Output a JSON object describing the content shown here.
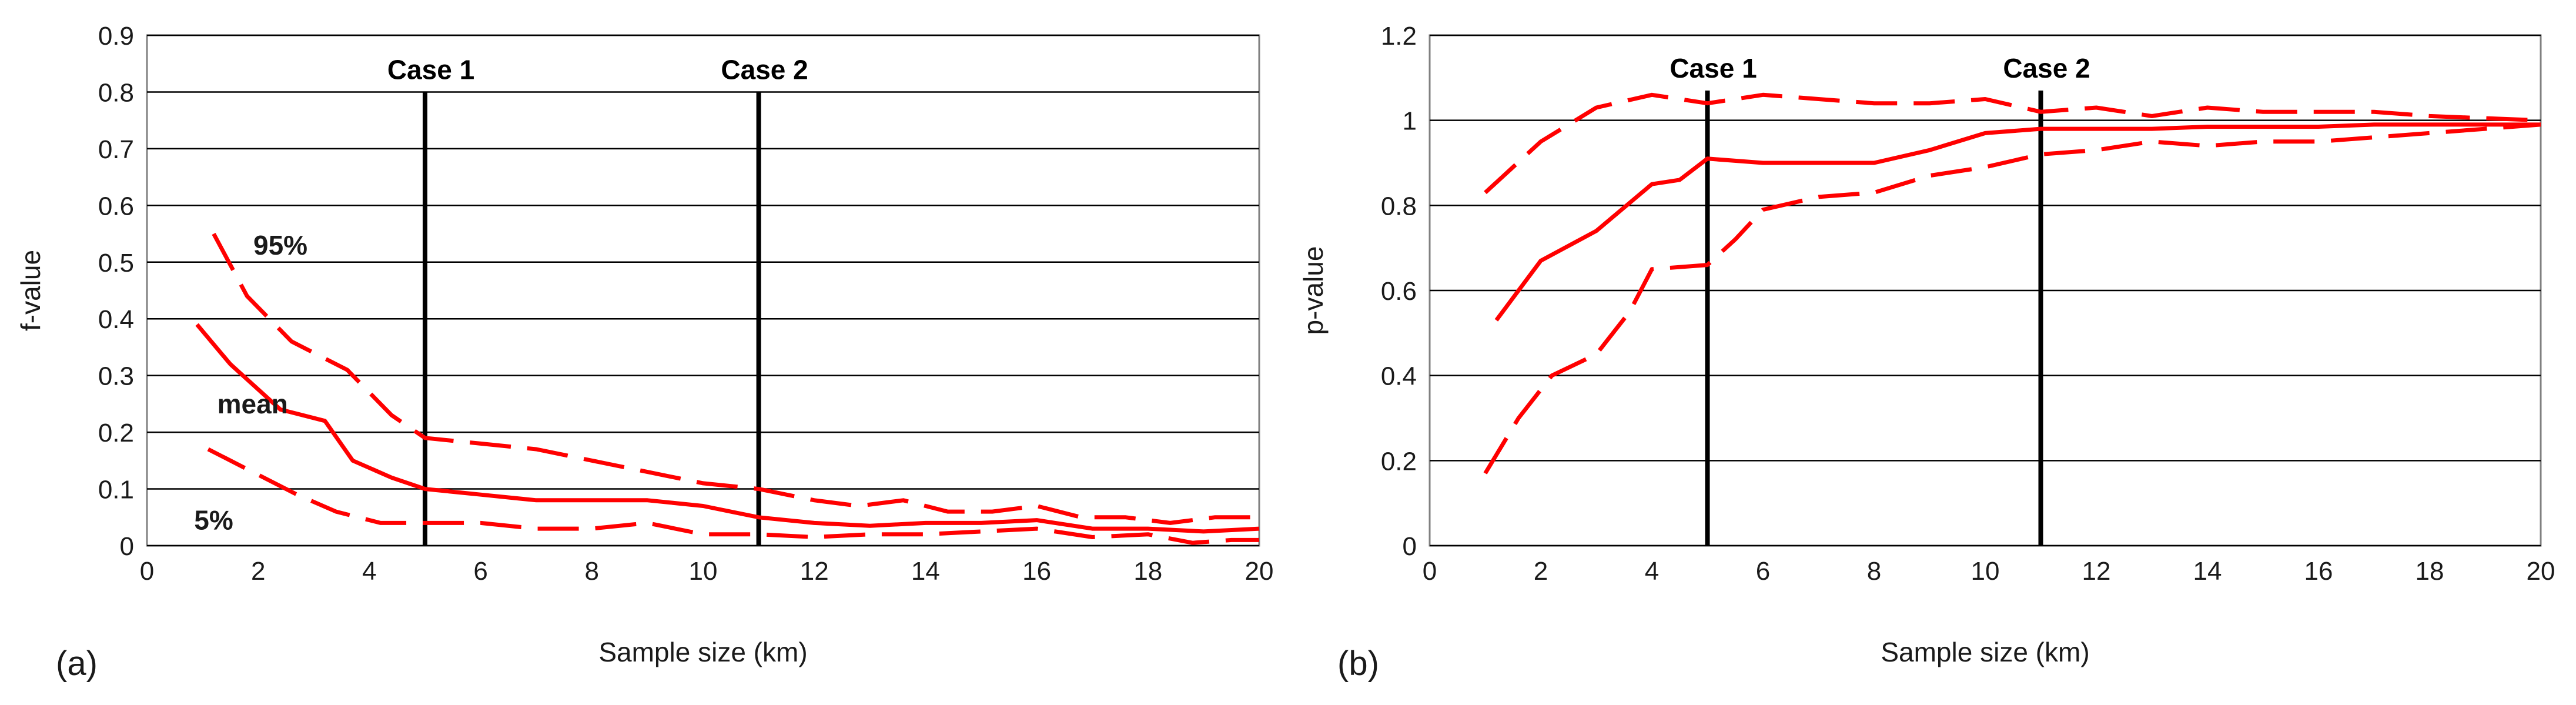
{
  "chart_data": [
    {
      "panel_label": "(a)",
      "type": "line",
      "xlabel": "Sample size (km)",
      "ylabel": "f-value",
      "xlim": [
        0,
        20
      ],
      "ylim": [
        0,
        0.9
      ],
      "xticks": [
        "0",
        "2",
        "4",
        "6",
        "8",
        "10",
        "12",
        "14",
        "16",
        "18",
        "20"
      ],
      "yticks": [
        "0",
        "0.1",
        "0.2",
        "0.3",
        "0.4",
        "0.5",
        "0.6",
        "0.7",
        "0.8",
        "0.9"
      ],
      "grid": "horizontal",
      "series": [
        {
          "name": "95%",
          "style": "dashed",
          "x": [
            1.2,
            1.8,
            2.6,
            3.6,
            4.4,
            5,
            6,
            7,
            8,
            9,
            10,
            11,
            12,
            12.8,
            13.6,
            14.4,
            15.2,
            16,
            16.8,
            17.6,
            18.4,
            19.2,
            20
          ],
          "y": [
            0.55,
            0.44,
            0.36,
            0.31,
            0.23,
            0.19,
            0.18,
            0.17,
            0.15,
            0.13,
            0.11,
            0.1,
            0.08,
            0.07,
            0.08,
            0.06,
            0.06,
            0.07,
            0.05,
            0.05,
            0.04,
            0.05,
            0.05
          ]
        },
        {
          "name": "mean",
          "style": "solid",
          "x": [
            0.9,
            1.5,
            2.4,
            3.2,
            3.7,
            4.4,
            5,
            6,
            7,
            8,
            9,
            10,
            11,
            12,
            13,
            14,
            15,
            16,
            17,
            18,
            19,
            20
          ],
          "y": [
            0.39,
            0.32,
            0.24,
            0.22,
            0.15,
            0.12,
            0.1,
            0.09,
            0.08,
            0.08,
            0.08,
            0.07,
            0.05,
            0.04,
            0.035,
            0.04,
            0.04,
            0.045,
            0.03,
            0.03,
            0.025,
            0.03
          ]
        },
        {
          "name": "5%",
          "style": "dashed",
          "x": [
            1.1,
            1.9,
            2.7,
            3.4,
            4.2,
            5,
            6,
            7,
            8,
            9,
            10,
            11,
            12,
            13,
            14,
            15,
            16,
            17,
            18,
            18.8,
            19.5,
            20
          ],
          "y": [
            0.17,
            0.13,
            0.09,
            0.06,
            0.04,
            0.04,
            0.04,
            0.03,
            0.03,
            0.04,
            0.02,
            0.02,
            0.015,
            0.02,
            0.02,
            0.025,
            0.03,
            0.015,
            0.02,
            0.005,
            0.01,
            0.01
          ]
        }
      ],
      "reference_lines": [
        {
          "label": "Case 1",
          "x": 5,
          "top": 0.8
        },
        {
          "label": "Case 2",
          "x": 11,
          "top": 0.8
        }
      ],
      "annotations": [
        {
          "text": "95%",
          "x": 2.4,
          "y": 0.53
        },
        {
          "text": "mean",
          "x": 1.9,
          "y": 0.25
        },
        {
          "text": "5%",
          "x": 1.2,
          "y": 0.045
        }
      ],
      "line_color": "#ff0000"
    },
    {
      "panel_label": "(b)",
      "type": "line",
      "xlabel": "Sample size (km)",
      "ylabel": "p-value",
      "xlim": [
        0,
        20
      ],
      "ylim": [
        0,
        1.2
      ],
      "xticks": [
        "0",
        "2",
        "4",
        "6",
        "8",
        "10",
        "12",
        "14",
        "16",
        "18",
        "20"
      ],
      "yticks": [
        "0",
        "0.2",
        "0.4",
        "0.6",
        "0.8",
        "1",
        "1.2"
      ],
      "grid": "horizontal",
      "series": [
        {
          "name": "",
          "style": "dashed",
          "x": [
            1,
            2,
            3,
            4,
            5,
            6,
            7,
            8,
            9,
            10,
            11,
            12,
            13,
            14,
            15,
            16,
            17,
            18,
            19,
            20
          ],
          "y": [
            0.83,
            0.95,
            1.03,
            1.06,
            1.04,
            1.06,
            1.05,
            1.04,
            1.04,
            1.05,
            1.02,
            1.03,
            1.01,
            1.03,
            1.02,
            1.02,
            1.02,
            1.01,
            1.005,
            1.0
          ]
        },
        {
          "name": "",
          "style": "solid",
          "x": [
            1.2,
            2,
            3,
            4,
            4.5,
            5,
            6,
            7,
            8,
            9,
            10,
            11,
            12,
            13,
            14,
            15,
            16,
            17,
            18,
            19,
            20
          ],
          "y": [
            0.53,
            0.67,
            0.74,
            0.85,
            0.86,
            0.91,
            0.9,
            0.9,
            0.9,
            0.93,
            0.97,
            0.98,
            0.98,
            0.98,
            0.985,
            0.985,
            0.985,
            0.99,
            0.99,
            0.99,
            0.99
          ]
        },
        {
          "name": "",
          "style": "dashed",
          "x": [
            1,
            1.6,
            2.2,
            3,
            3.6,
            4,
            5,
            5.5,
            6,
            7,
            8,
            9,
            10,
            11,
            12,
            13,
            14,
            15,
            16,
            17,
            18,
            19,
            20
          ],
          "y": [
            0.17,
            0.3,
            0.4,
            0.45,
            0.55,
            0.65,
            0.66,
            0.72,
            0.79,
            0.82,
            0.83,
            0.87,
            0.89,
            0.92,
            0.93,
            0.95,
            0.94,
            0.95,
            0.95,
            0.96,
            0.97,
            0.98,
            0.99
          ]
        }
      ],
      "reference_lines": [
        {
          "label": "Case 1",
          "x": 5,
          "top": 1.07
        },
        {
          "label": "Case 2",
          "x": 11,
          "top": 1.07
        }
      ],
      "annotations": [],
      "line_color": "#ff0000"
    }
  ]
}
